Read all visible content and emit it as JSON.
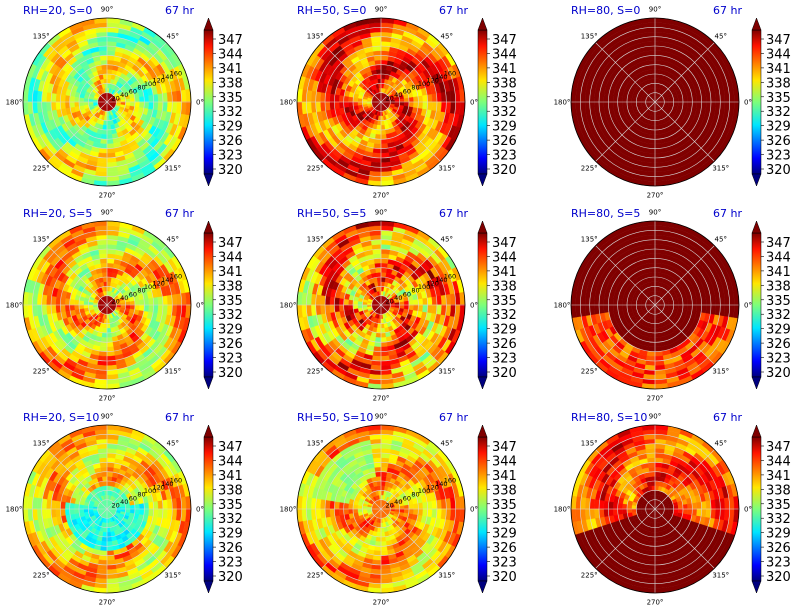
{
  "chart_data": {
    "type": "heatmap",
    "projection": "polar",
    "colormap": "jet",
    "colorbar_ticks": [
      "347",
      "344",
      "341",
      "338",
      "335",
      "332",
      "329",
      "326",
      "323",
      "320"
    ],
    "clim": [
      320,
      350
    ],
    "angle_ticks": [
      "90°",
      "45°",
      "0°",
      "315°",
      "270°",
      "225°",
      "180°",
      "135°"
    ],
    "radial_ticks": [
      "20",
      "40",
      "60",
      "80",
      "100",
      "120",
      "140",
      "160"
    ],
    "rmax": 180,
    "time_label": "67 hr",
    "panels": [
      {
        "title": "RH=20, S=0",
        "base": 337,
        "eye": 349,
        "pattern": "spiral",
        "show_radial_labels": true
      },
      {
        "title": "RH=50, S=0",
        "base": 344,
        "eye": 349,
        "pattern": "spiral",
        "show_radial_labels": true
      },
      {
        "title": "RH=80, S=0",
        "base": 350,
        "eye": 350,
        "pattern": "uniform",
        "show_radial_labels": false
      },
      {
        "title": "RH=20, S=5",
        "base": 340,
        "eye": 349,
        "pattern": "spiral",
        "show_radial_labels": true
      },
      {
        "title": "RH=50, S=5",
        "base": 342,
        "eye": 349,
        "pattern": "patchy",
        "show_radial_labels": true
      },
      {
        "title": "RH=80, S=5",
        "base": 350,
        "eye": 350,
        "pattern": "lower-patches",
        "show_radial_labels": false
      },
      {
        "title": "RH=20, S=10",
        "base": 340,
        "eye": 334,
        "pattern": "dry-south",
        "show_radial_labels": true
      },
      {
        "title": "RH=50, S=10",
        "base": 341,
        "eye": 343,
        "pattern": "west-blob",
        "show_radial_labels": true
      },
      {
        "title": "RH=80, S=10",
        "base": 344,
        "eye": 350,
        "pattern": "upper-patches",
        "show_radial_labels": false
      }
    ]
  }
}
